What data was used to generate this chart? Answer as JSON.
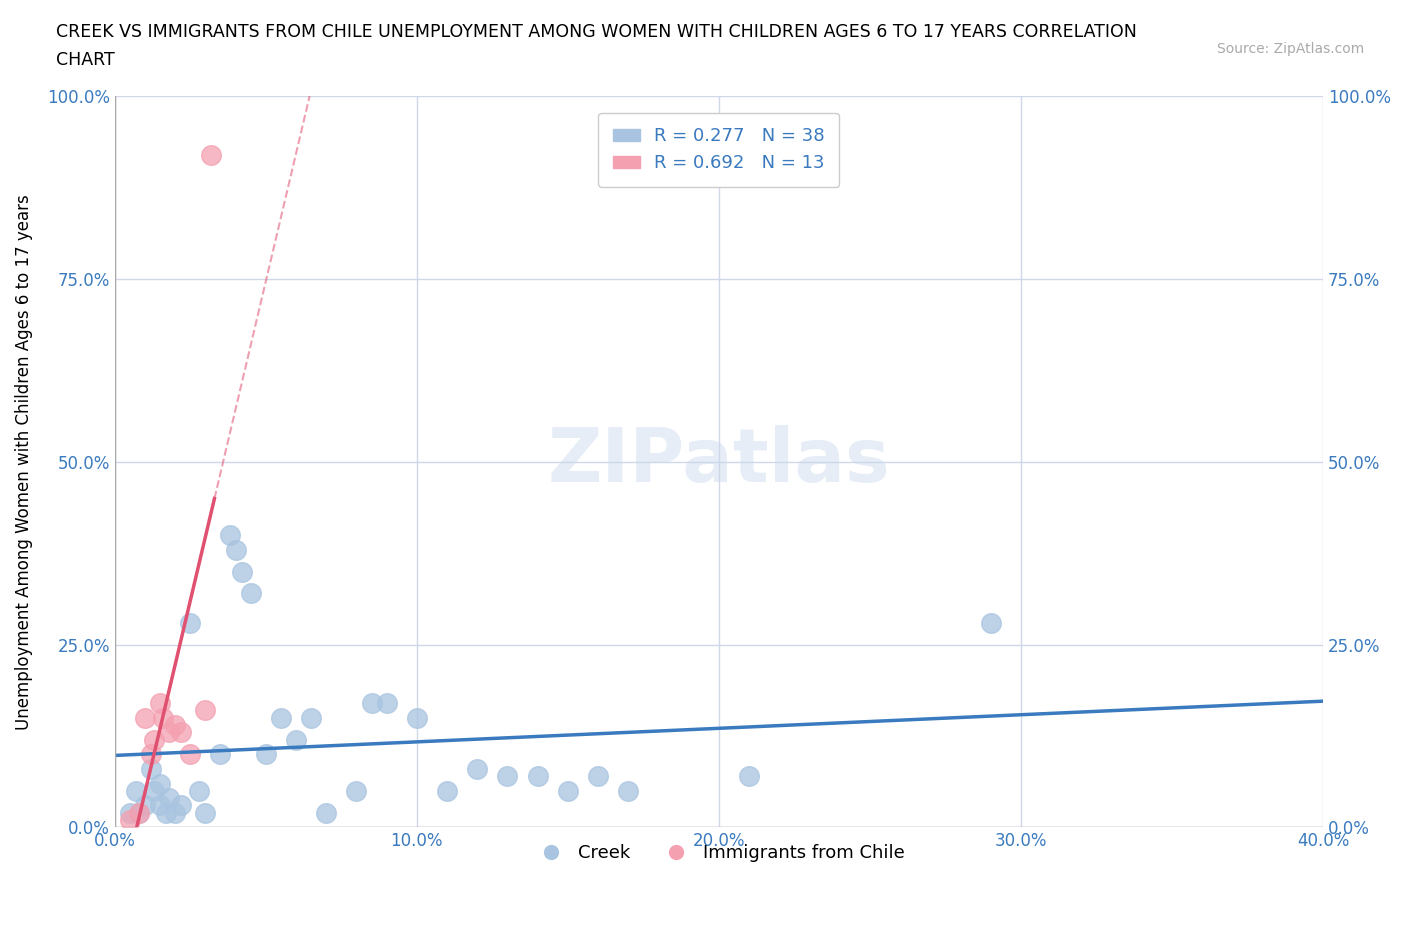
{
  "title_line1": "CREEK VS IMMIGRANTS FROM CHILE UNEMPLOYMENT AMONG WOMEN WITH CHILDREN AGES 6 TO 17 YEARS CORRELATION",
  "title_line2": "CHART",
  "source_text": "Source: ZipAtlas.com",
  "ylabel": "Unemployment Among Women with Children Ages 6 to 17 years",
  "xlabel_blue": "Creek",
  "xlabel_pink": "Immigrants from Chile",
  "xlim": [
    0.0,
    0.4
  ],
  "ylim": [
    0.0,
    1.0
  ],
  "xticks": [
    0.0,
    0.1,
    0.2,
    0.3,
    0.4
  ],
  "yticks": [
    0.0,
    0.25,
    0.5,
    0.75,
    1.0
  ],
  "ytick_labels": [
    "0.0%",
    "25.0%",
    "50.0%",
    "75.0%",
    "100.0%"
  ],
  "xtick_labels": [
    "0.0%",
    "10.0%",
    "20.0%",
    "30.0%",
    "40.0%"
  ],
  "blue_R": 0.277,
  "blue_N": 38,
  "pink_R": 0.692,
  "pink_N": 13,
  "blue_color": "#a8c4e0",
  "pink_color": "#f4a0b0",
  "trend_blue": "#3a7abf",
  "trend_pink": "#e05070",
  "grid_color": "#d0d8e8",
  "background_color": "#ffffff",
  "watermark": "ZIPatlas",
  "blue_points": [
    [
      0.005,
      0.02
    ],
    [
      0.007,
      0.05
    ],
    [
      0.008,
      0.02
    ],
    [
      0.01,
      0.03
    ],
    [
      0.012,
      0.08
    ],
    [
      0.013,
      0.05
    ],
    [
      0.015,
      0.03
    ],
    [
      0.015,
      0.06
    ],
    [
      0.017,
      0.02
    ],
    [
      0.018,
      0.04
    ],
    [
      0.02,
      0.02
    ],
    [
      0.022,
      0.03
    ],
    [
      0.025,
      0.28
    ],
    [
      0.028,
      0.05
    ],
    [
      0.03,
      0.02
    ],
    [
      0.035,
      0.1
    ],
    [
      0.038,
      0.4
    ],
    [
      0.04,
      0.38
    ],
    [
      0.042,
      0.35
    ],
    [
      0.045,
      0.32
    ],
    [
      0.05,
      0.1
    ],
    [
      0.055,
      0.15
    ],
    [
      0.06,
      0.12
    ],
    [
      0.065,
      0.15
    ],
    [
      0.07,
      0.02
    ],
    [
      0.08,
      0.05
    ],
    [
      0.085,
      0.17
    ],
    [
      0.09,
      0.17
    ],
    [
      0.1,
      0.15
    ],
    [
      0.11,
      0.05
    ],
    [
      0.12,
      0.08
    ],
    [
      0.13,
      0.07
    ],
    [
      0.14,
      0.07
    ],
    [
      0.15,
      0.05
    ],
    [
      0.16,
      0.07
    ],
    [
      0.17,
      0.05
    ],
    [
      0.21,
      0.07
    ],
    [
      0.29,
      0.28
    ]
  ],
  "pink_points": [
    [
      0.005,
      0.01
    ],
    [
      0.008,
      0.02
    ],
    [
      0.01,
      0.15
    ],
    [
      0.012,
      0.1
    ],
    [
      0.013,
      0.12
    ],
    [
      0.015,
      0.17
    ],
    [
      0.016,
      0.15
    ],
    [
      0.018,
      0.13
    ],
    [
      0.02,
      0.14
    ],
    [
      0.022,
      0.13
    ],
    [
      0.025,
      0.1
    ],
    [
      0.03,
      0.16
    ],
    [
      0.032,
      0.92
    ]
  ]
}
